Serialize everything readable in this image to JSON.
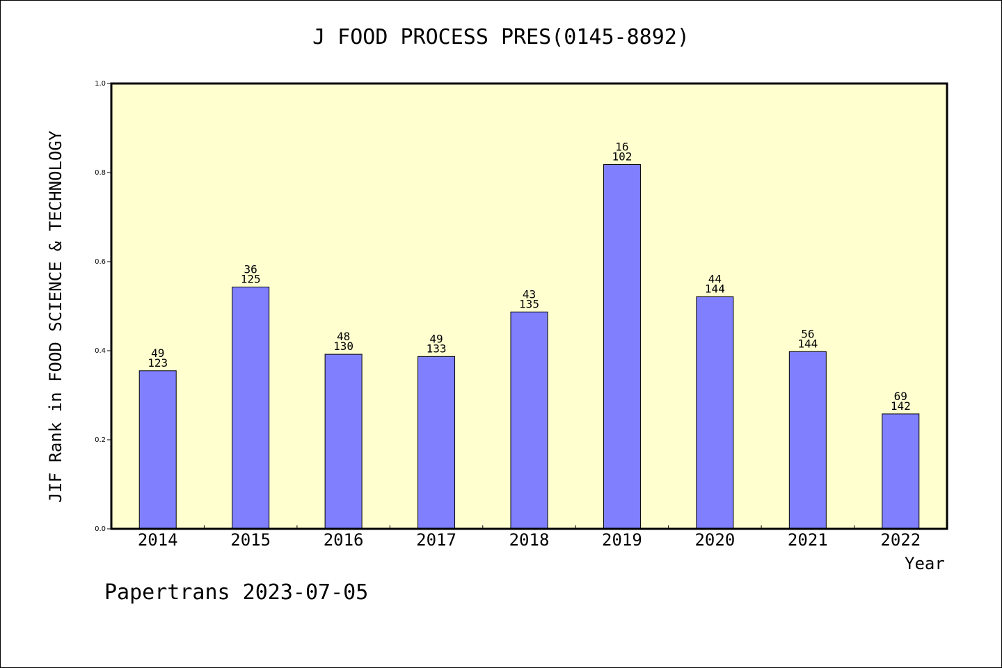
{
  "chart_data": {
    "type": "bar",
    "title": "J FOOD PROCESS PRES(0145-8892)",
    "xlabel": "Year",
    "ylabel": "JIF Rank in FOOD SCIENCE & TECHNOLOGY",
    "ylim": [
      0,
      1.0
    ],
    "yticks": [
      "0.0",
      "0.2",
      "0.4",
      "0.6",
      "0.8",
      "1.0"
    ],
    "grid": false,
    "categories": [
      "2014",
      "2015",
      "2016",
      "2017",
      "2018",
      "2019",
      "2020",
      "2021",
      "2022"
    ],
    "values": [
      0.355,
      0.543,
      0.392,
      0.387,
      0.487,
      0.818,
      0.521,
      0.398,
      0.258
    ],
    "rank_labels": [
      {
        "rank": "49",
        "total": "123"
      },
      {
        "rank": "36",
        "total": "125"
      },
      {
        "rank": "48",
        "total": "130"
      },
      {
        "rank": "49",
        "total": "133"
      },
      {
        "rank": "43",
        "total": "135"
      },
      {
        "rank": "16",
        "total": "102"
      },
      {
        "rank": "44",
        "total": "144"
      },
      {
        "rank": "56",
        "total": "144"
      },
      {
        "rank": "69",
        "total": "142"
      }
    ],
    "colors": {
      "plot_background": "#ffffd0",
      "bar_fill": "#8080ff",
      "bar_stroke": "#000000"
    }
  },
  "footer": "Papertrans 2023-07-05"
}
